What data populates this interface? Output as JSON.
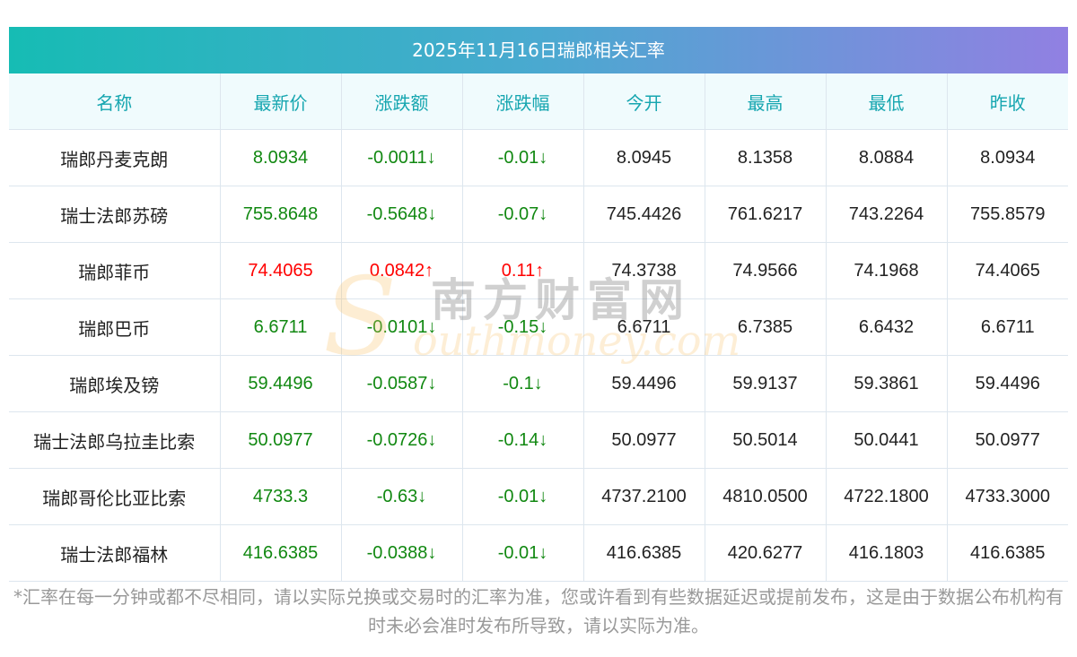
{
  "title": "2025年11月16日瑞郎相关汇率",
  "columns": [
    "名称",
    "最新价",
    "涨跌额",
    "涨跌幅",
    "今开",
    "最高",
    "最低",
    "昨收"
  ],
  "rows": [
    {
      "name": "瑞郎丹麦克朗",
      "latest": "8.0934",
      "change": "-0.0011↓",
      "pct": "-0.01↓",
      "open": "8.0945",
      "high": "8.1358",
      "low": "8.0884",
      "prev": "8.0934",
      "dir": "down"
    },
    {
      "name": "瑞士法郎苏磅",
      "latest": "755.8648",
      "change": "-0.5648↓",
      "pct": "-0.07↓",
      "open": "745.4426",
      "high": "761.6217",
      "low": "743.2264",
      "prev": "755.8579",
      "dir": "down"
    },
    {
      "name": "瑞郎菲币",
      "latest": "74.4065",
      "change": "0.0842↑",
      "pct": "0.11↑",
      "open": "74.3738",
      "high": "74.9566",
      "low": "74.1968",
      "prev": "74.4065",
      "dir": "up"
    },
    {
      "name": "瑞郎巴币",
      "latest": "6.6711",
      "change": "-0.0101↓",
      "pct": "-0.15↓",
      "open": "6.6711",
      "high": "6.7385",
      "low": "6.6432",
      "prev": "6.6711",
      "dir": "down"
    },
    {
      "name": "瑞郎埃及镑",
      "latest": "59.4496",
      "change": "-0.0587↓",
      "pct": "-0.1↓",
      "open": "59.4496",
      "high": "59.9137",
      "low": "59.3861",
      "prev": "59.4496",
      "dir": "down"
    },
    {
      "name": "瑞士法郎乌拉圭比索",
      "latest": "50.0977",
      "change": "-0.0726↓",
      "pct": "-0.14↓",
      "open": "50.0977",
      "high": "50.5014",
      "low": "50.0441",
      "prev": "50.0977",
      "dir": "down"
    },
    {
      "name": "瑞郎哥伦比亚比索",
      "latest": "4733.3",
      "change": "-0.63↓",
      "pct": "-0.01↓",
      "open": "4737.2100",
      "high": "4810.0500",
      "low": "4722.1800",
      "prev": "4733.3000",
      "dir": "down"
    },
    {
      "name": "瑞士法郎福林",
      "latest": "416.6385",
      "change": "-0.0388↓",
      "pct": "-0.01↓",
      "open": "416.6385",
      "high": "420.6277",
      "low": "416.1803",
      "prev": "416.6385",
      "dir": "down"
    }
  ],
  "watermark": {
    "cn": "南方财富网",
    "en": "southmoney.com"
  },
  "note": "*汇率在每一分钟或都不尽相同，请以实际兑换或交易时的汇率为准，您或许看到有些数据延迟或提前发布，这是由于数据公布机构有时未必会准时发布所导致，请以实际为准。",
  "colors": {
    "down": "#118811",
    "up": "#ff0000",
    "header_text": "#16a6b0"
  }
}
